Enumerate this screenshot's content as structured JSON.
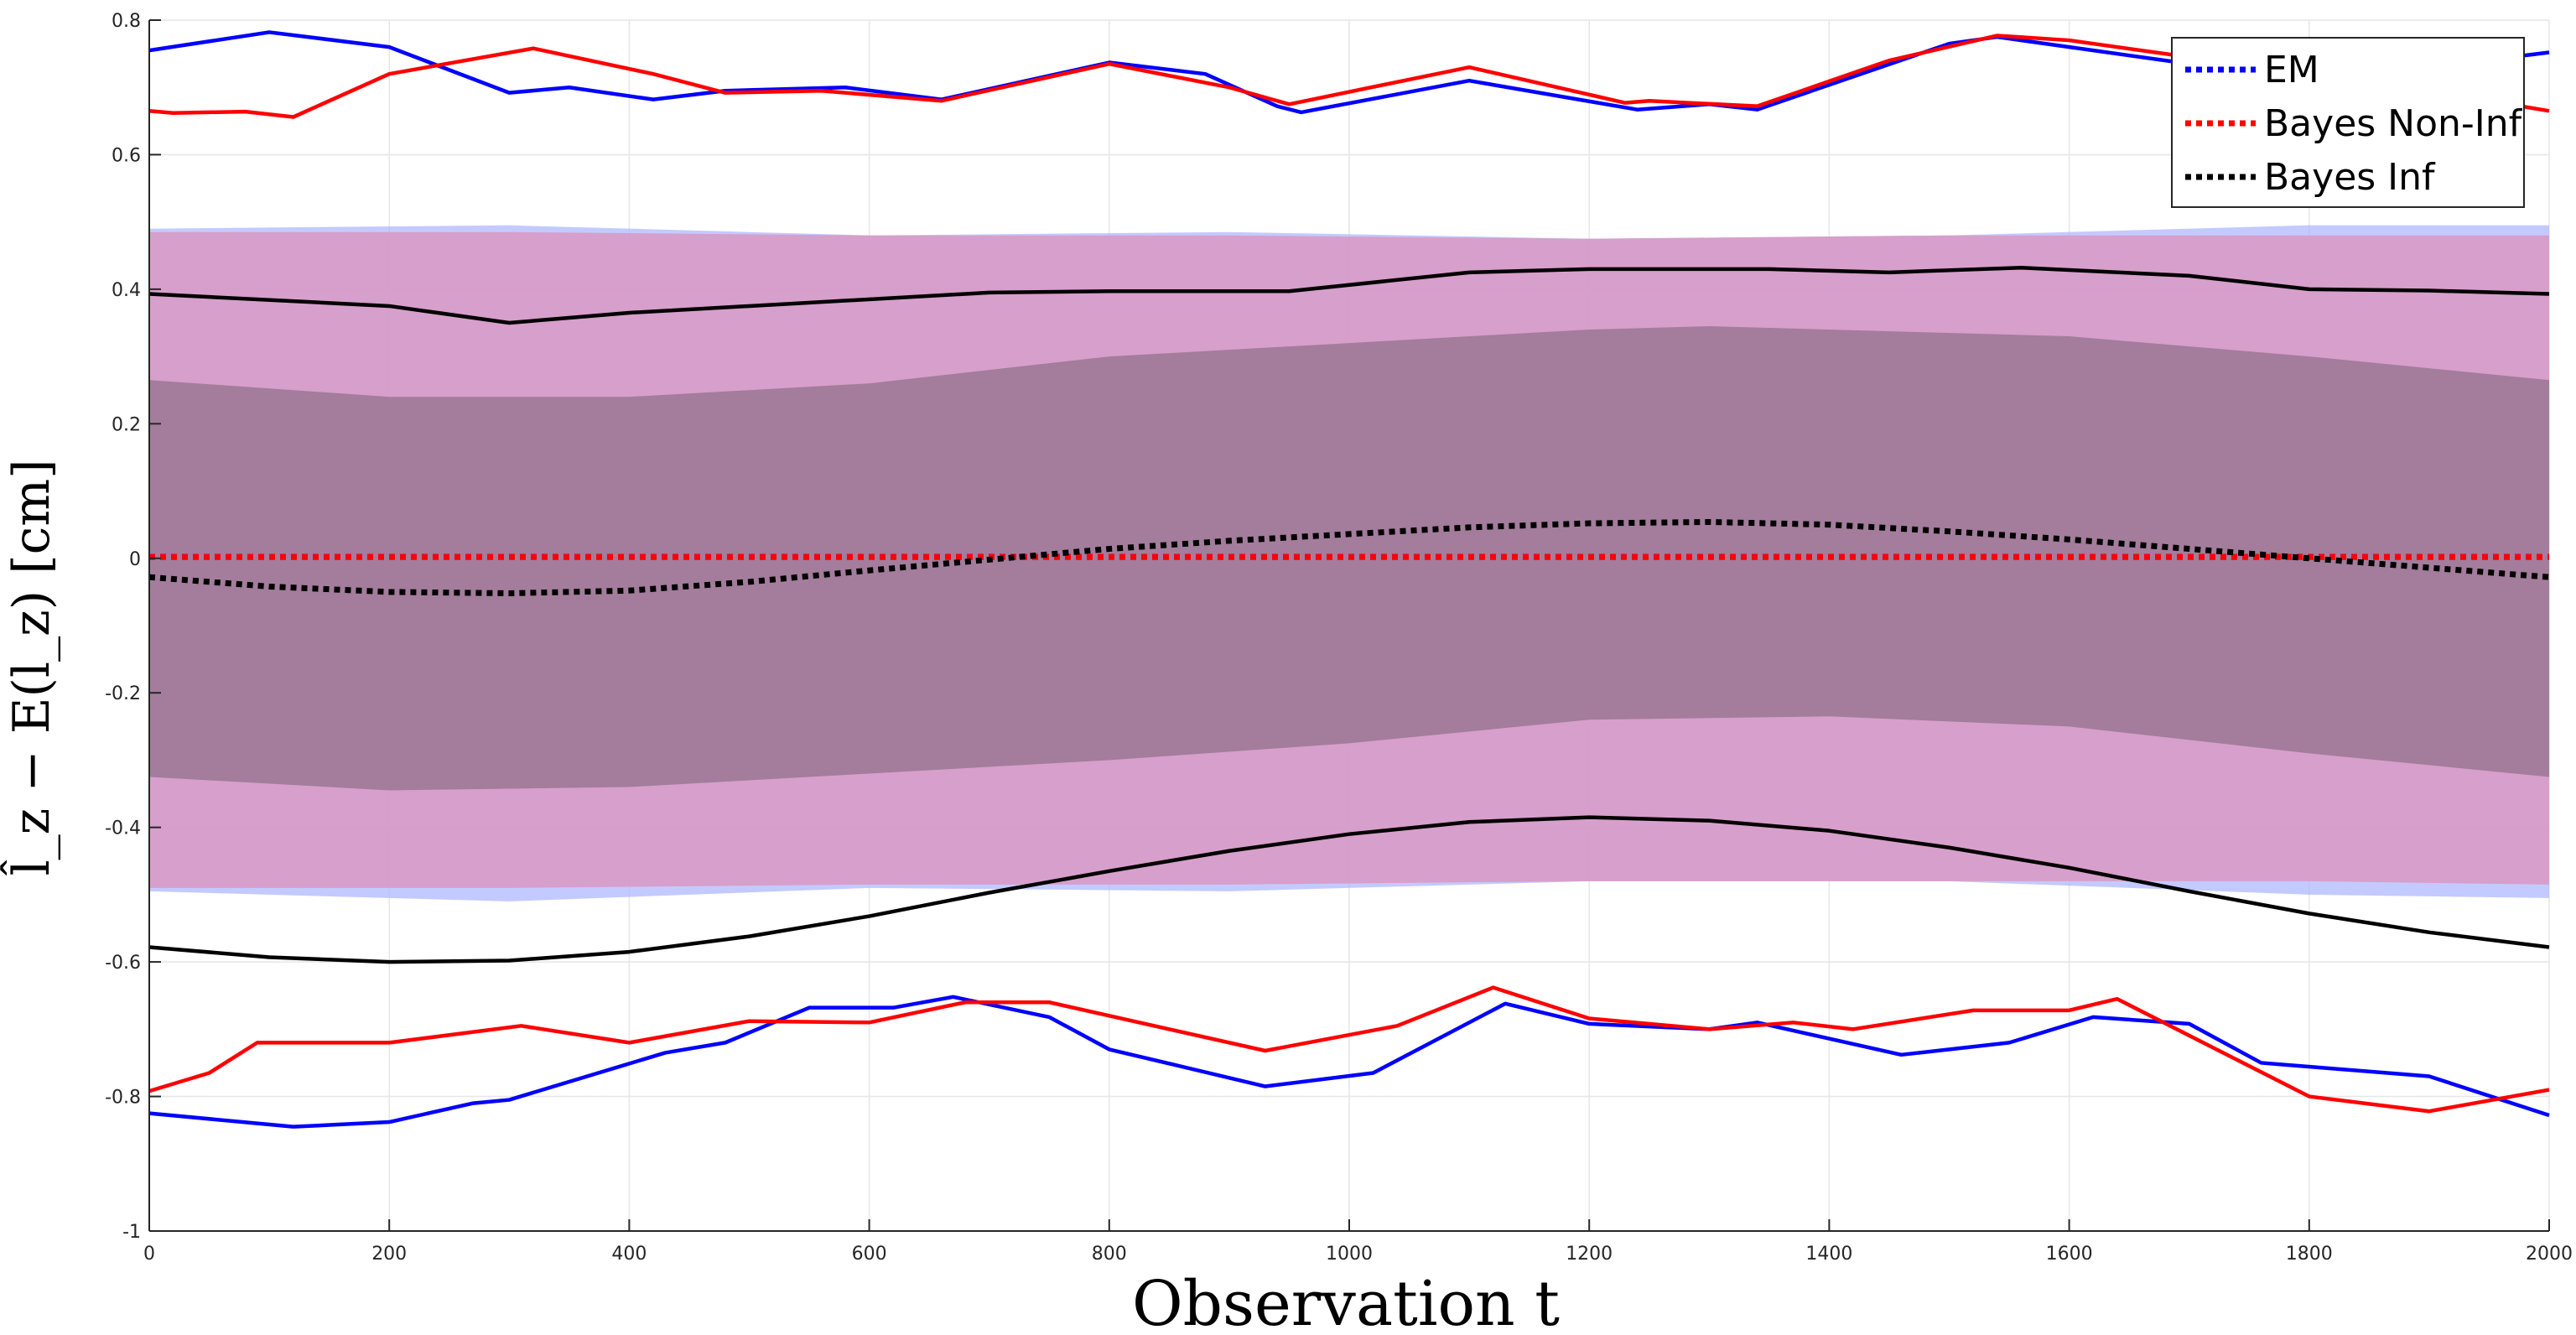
{
  "chart_data": {
    "type": "line",
    "title": "",
    "xlabel": "Observation t",
    "ylabel": "l̂_z − E(l_z) [cm]",
    "xlim": [
      0,
      2000
    ],
    "ylim": [
      -1,
      0.8
    ],
    "xticks": [
      0,
      200,
      400,
      600,
      800,
      1000,
      1200,
      1400,
      1600,
      1800,
      2000
    ],
    "xtick_labels": [
      "0",
      "200",
      "400",
      "600",
      "800",
      "1000",
      "1200",
      "1400",
      "1600",
      "1800",
      "2000"
    ],
    "yticks": [
      -1,
      -0.8,
      -0.6,
      -0.4,
      -0.2,
      0,
      0.2,
      0.4,
      0.6,
      0.8
    ],
    "ytick_labels": [
      "-1",
      "-0.8",
      "-0.6",
      "-0.4",
      "-0.2",
      "0",
      "0.2",
      "0.4",
      "0.6",
      "0.8"
    ],
    "grid": true,
    "legend_position": "top-right",
    "legend": [
      "EM",
      "Bayes Non-Inf",
      "Bayes Inf"
    ],
    "colors": {
      "EM": "#0000ff",
      "Bayes Non-Inf": "#ff0000",
      "Bayes Inf": "#000000",
      "grid": "#e6e6e6",
      "axis": "#262626"
    },
    "bands": [
      {
        "name": "EM 95% band",
        "color": "#aab4ff",
        "opacity": 0.7,
        "upper": [
          [
            0,
            0.49
          ],
          [
            300,
            0.495
          ],
          [
            600,
            0.48
          ],
          [
            900,
            0.485
          ],
          [
            1200,
            0.475
          ],
          [
            1500,
            0.48
          ],
          [
            1800,
            0.495
          ],
          [
            2000,
            0.495
          ]
        ],
        "lower": [
          [
            0,
            -0.495
          ],
          [
            300,
            -0.51
          ],
          [
            600,
            -0.49
          ],
          [
            900,
            -0.495
          ],
          [
            1200,
            -0.48
          ],
          [
            1500,
            -0.48
          ],
          [
            1800,
            -0.5
          ],
          [
            2000,
            -0.505
          ]
        ]
      },
      {
        "name": "Bayes Non-Inf 95% band",
        "color": "#d99ac5",
        "opacity": 0.9,
        "upper": [
          [
            0,
            0.485
          ],
          [
            300,
            0.485
          ],
          [
            600,
            0.48
          ],
          [
            900,
            0.48
          ],
          [
            1200,
            0.475
          ],
          [
            1500,
            0.48
          ],
          [
            1800,
            0.48
          ],
          [
            2000,
            0.48
          ]
        ],
        "lower": [
          [
            0,
            -0.49
          ],
          [
            300,
            -0.49
          ],
          [
            600,
            -0.485
          ],
          [
            900,
            -0.485
          ],
          [
            1200,
            -0.48
          ],
          [
            1500,
            -0.48
          ],
          [
            1800,
            -0.48
          ],
          [
            2000,
            -0.485
          ]
        ]
      },
      {
        "name": "Bayes Inf 95% band",
        "color": "#a37d9b",
        "opacity": 1.0,
        "upper": [
          [
            0,
            0.265
          ],
          [
            200,
            0.24
          ],
          [
            400,
            0.24
          ],
          [
            600,
            0.26
          ],
          [
            800,
            0.3
          ],
          [
            1000,
            0.32
          ],
          [
            1200,
            0.34
          ],
          [
            1300,
            0.345
          ],
          [
            1400,
            0.34
          ],
          [
            1600,
            0.33
          ],
          [
            1800,
            0.3
          ],
          [
            2000,
            0.265
          ]
        ],
        "lower": [
          [
            0,
            -0.325
          ],
          [
            200,
            -0.345
          ],
          [
            400,
            -0.34
          ],
          [
            600,
            -0.32
          ],
          [
            800,
            -0.3
          ],
          [
            1000,
            -0.275
          ],
          [
            1200,
            -0.24
          ],
          [
            1400,
            -0.235
          ],
          [
            1600,
            -0.25
          ],
          [
            1800,
            -0.29
          ],
          [
            2000,
            -0.325
          ]
        ]
      }
    ],
    "series": [
      {
        "name": "EM upper bound",
        "color": "#0000ff",
        "style": "solid",
        "points": [
          [
            0,
            0.755
          ],
          [
            100,
            0.782
          ],
          [
            200,
            0.76
          ],
          [
            300,
            0.692
          ],
          [
            350,
            0.7
          ],
          [
            420,
            0.682
          ],
          [
            480,
            0.695
          ],
          [
            580,
            0.7
          ],
          [
            660,
            0.682
          ],
          [
            800,
            0.737
          ],
          [
            880,
            0.72
          ],
          [
            940,
            0.672
          ],
          [
            960,
            0.663
          ],
          [
            1100,
            0.71
          ],
          [
            1240,
            0.667
          ],
          [
            1300,
            0.675
          ],
          [
            1340,
            0.667
          ],
          [
            1500,
            0.765
          ],
          [
            1540,
            0.775
          ],
          [
            1700,
            0.735
          ],
          [
            1800,
            0.735
          ],
          [
            1900,
            0.73
          ],
          [
            2000,
            0.752
          ]
        ]
      },
      {
        "name": "Bayes Non-Inf upper bound",
        "color": "#ff0000",
        "style": "solid",
        "points": [
          [
            0,
            0.665
          ],
          [
            20,
            0.662
          ],
          [
            80,
            0.664
          ],
          [
            120,
            0.656
          ],
          [
            200,
            0.72
          ],
          [
            320,
            0.758
          ],
          [
            420,
            0.72
          ],
          [
            480,
            0.692
          ],
          [
            560,
            0.695
          ],
          [
            660,
            0.68
          ],
          [
            800,
            0.735
          ],
          [
            900,
            0.7
          ],
          [
            950,
            0.675
          ],
          [
            1100,
            0.73
          ],
          [
            1230,
            0.677
          ],
          [
            1250,
            0.68
          ],
          [
            1340,
            0.672
          ],
          [
            1450,
            0.74
          ],
          [
            1540,
            0.777
          ],
          [
            1600,
            0.77
          ],
          [
            1700,
            0.745
          ],
          [
            1800,
            0.71
          ],
          [
            1900,
            0.695
          ],
          [
            2000,
            0.665
          ]
        ]
      },
      {
        "name": "EM lower bound",
        "color": "#0000ff",
        "style": "solid",
        "points": [
          [
            0,
            -0.825
          ],
          [
            120,
            -0.845
          ],
          [
            200,
            -0.838
          ],
          [
            270,
            -0.81
          ],
          [
            300,
            -0.805
          ],
          [
            430,
            -0.735
          ],
          [
            480,
            -0.72
          ],
          [
            550,
            -0.668
          ],
          [
            620,
            -0.668
          ],
          [
            670,
            -0.652
          ],
          [
            750,
            -0.682
          ],
          [
            800,
            -0.73
          ],
          [
            930,
            -0.785
          ],
          [
            1020,
            -0.765
          ],
          [
            1130,
            -0.662
          ],
          [
            1200,
            -0.692
          ],
          [
            1300,
            -0.7
          ],
          [
            1340,
            -0.69
          ],
          [
            1460,
            -0.738
          ],
          [
            1550,
            -0.72
          ],
          [
            1620,
            -0.682
          ],
          [
            1700,
            -0.692
          ],
          [
            1760,
            -0.75
          ],
          [
            1900,
            -0.77
          ],
          [
            2000,
            -0.828
          ]
        ]
      },
      {
        "name": "Bayes Non-Inf lower bound",
        "color": "#ff0000",
        "style": "solid",
        "points": [
          [
            0,
            -0.792
          ],
          [
            50,
            -0.765
          ],
          [
            90,
            -0.72
          ],
          [
            200,
            -0.72
          ],
          [
            310,
            -0.695
          ],
          [
            400,
            -0.72
          ],
          [
            500,
            -0.688
          ],
          [
            600,
            -0.69
          ],
          [
            680,
            -0.66
          ],
          [
            750,
            -0.66
          ],
          [
            930,
            -0.732
          ],
          [
            1040,
            -0.695
          ],
          [
            1120,
            -0.638
          ],
          [
            1200,
            -0.684
          ],
          [
            1300,
            -0.7
          ],
          [
            1370,
            -0.69
          ],
          [
            1420,
            -0.7
          ],
          [
            1520,
            -0.672
          ],
          [
            1600,
            -0.672
          ],
          [
            1640,
            -0.655
          ],
          [
            1800,
            -0.8
          ],
          [
            1900,
            -0.822
          ],
          [
            2000,
            -0.79
          ]
        ]
      },
      {
        "name": "Bayes Inf upper bound",
        "color": "#000000",
        "style": "solid",
        "points": [
          [
            0,
            0.393
          ],
          [
            200,
            0.375
          ],
          [
            300,
            0.35
          ],
          [
            400,
            0.365
          ],
          [
            500,
            0.375
          ],
          [
            700,
            0.395
          ],
          [
            800,
            0.397
          ],
          [
            950,
            0.397
          ],
          [
            1100,
            0.425
          ],
          [
            1200,
            0.43
          ],
          [
            1350,
            0.43
          ],
          [
            1450,
            0.425
          ],
          [
            1560,
            0.432
          ],
          [
            1700,
            0.42
          ],
          [
            1800,
            0.4
          ],
          [
            1900,
            0.398
          ],
          [
            2000,
            0.393
          ]
        ]
      },
      {
        "name": "Bayes Inf lower bound",
        "color": "#000000",
        "style": "solid",
        "points": [
          [
            0,
            -0.578
          ],
          [
            100,
            -0.593
          ],
          [
            200,
            -0.6
          ],
          [
            300,
            -0.598
          ],
          [
            400,
            -0.585
          ],
          [
            500,
            -0.562
          ],
          [
            600,
            -0.532
          ],
          [
            700,
            -0.497
          ],
          [
            800,
            -0.465
          ],
          [
            900,
            -0.435
          ],
          [
            1000,
            -0.41
          ],
          [
            1100,
            -0.392
          ],
          [
            1200,
            -0.385
          ],
          [
            1300,
            -0.39
          ],
          [
            1400,
            -0.405
          ],
          [
            1500,
            -0.43
          ],
          [
            1600,
            -0.46
          ],
          [
            1700,
            -0.495
          ],
          [
            1800,
            -0.528
          ],
          [
            1900,
            -0.556
          ],
          [
            2000,
            -0.578
          ]
        ]
      },
      {
        "name": "EM",
        "color": "#0000ff",
        "style": "dotted",
        "points": [
          [
            0,
            0.002
          ],
          [
            2000,
            0.002
          ]
        ]
      },
      {
        "name": "Bayes Non-Inf",
        "color": "#ff0000",
        "style": "dotted",
        "points": [
          [
            0,
            0.002
          ],
          [
            2000,
            0.002
          ]
        ]
      },
      {
        "name": "Bayes Inf",
        "color": "#000000",
        "style": "dotted",
        "points": [
          [
            0,
            -0.028
          ],
          [
            100,
            -0.042
          ],
          [
            200,
            -0.05
          ],
          [
            300,
            -0.052
          ],
          [
            400,
            -0.048
          ],
          [
            500,
            -0.035
          ],
          [
            600,
            -0.018
          ],
          [
            700,
            -0.002
          ],
          [
            800,
            0.014
          ],
          [
            900,
            0.026
          ],
          [
            1000,
            0.036
          ],
          [
            1100,
            0.046
          ],
          [
            1200,
            0.052
          ],
          [
            1300,
            0.054
          ],
          [
            1400,
            0.05
          ],
          [
            1500,
            0.04
          ],
          [
            1600,
            0.028
          ],
          [
            1700,
            0.014
          ],
          [
            1800,
            0.0
          ],
          [
            1900,
            -0.014
          ],
          [
            2000,
            -0.028
          ]
        ]
      }
    ]
  }
}
